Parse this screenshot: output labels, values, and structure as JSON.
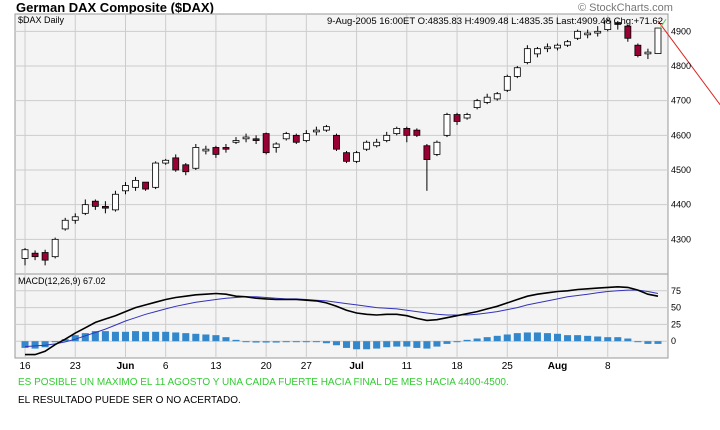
{
  "header": {
    "title": "German DAX Composite ($DAX)",
    "watermark": "© StockCharts.com"
  },
  "notes": {
    "line1": "ES  POSIBLE UN MAXIMO EL 11 AGOSTO Y UNA CAIDA FUERTE HACIA FINAL DE MES HACIA 4400-4500.",
    "line2": "EL RESULTADO PUEDE SER O NO ACERTADO."
  },
  "chart_data": [
    {
      "type": "candlestick",
      "symbol_label": "$DAX Daily",
      "info": "9-Aug-2005 16:00ET  O:4835.83  H:4909.48  L:4835.35  Last:4909.48  Chg:+71.62",
      "ylim": [
        4200,
        4950
      ],
      "yticks": [
        4300,
        4400,
        4500,
        4600,
        4700,
        4800,
        4900
      ],
      "grid": true,
      "colors": {
        "up": "#ffffff",
        "down": "#990033",
        "outline": "#000000",
        "projection": "#dd2222",
        "chg": "#33aa33"
      },
      "x_labels": [
        "16",
        "23",
        "Jun",
        "6",
        "13",
        "20",
        "27",
        "Jul",
        "11",
        "18",
        "25",
        "Aug",
        "8"
      ],
      "candles": [
        {
          "o": 4245,
          "h": 4275,
          "l": 4225,
          "c": 4270
        },
        {
          "o": 4260,
          "h": 4268,
          "l": 4240,
          "c": 4250
        },
        {
          "o": 4262,
          "h": 4270,
          "l": 4225,
          "c": 4240
        },
        {
          "o": 4250,
          "h": 4305,
          "l": 4245,
          "c": 4300
        },
        {
          "o": 4330,
          "h": 4362,
          "l": 4325,
          "c": 4355
        },
        {
          "o": 4355,
          "h": 4375,
          "l": 4345,
          "c": 4365
        },
        {
          "o": 4375,
          "h": 4415,
          "l": 4370,
          "c": 4400
        },
        {
          "o": 4410,
          "h": 4415,
          "l": 4385,
          "c": 4395
        },
        {
          "o": 4395,
          "h": 4410,
          "l": 4375,
          "c": 4390
        },
        {
          "o": 4385,
          "h": 4440,
          "l": 4380,
          "c": 4430
        },
        {
          "o": 4440,
          "h": 4465,
          "l": 4430,
          "c": 4455
        },
        {
          "o": 4450,
          "h": 4480,
          "l": 4440,
          "c": 4470
        },
        {
          "o": 4465,
          "h": 4462,
          "l": 4440,
          "c": 4445
        },
        {
          "o": 4450,
          "h": 4525,
          "l": 4445,
          "c": 4520
        },
        {
          "o": 4520,
          "h": 4532,
          "l": 4515,
          "c": 4528
        },
        {
          "o": 4535,
          "h": 4545,
          "l": 4495,
          "c": 4500
        },
        {
          "o": 4515,
          "h": 4520,
          "l": 4485,
          "c": 4495
        },
        {
          "o": 4505,
          "h": 4575,
          "l": 4500,
          "c": 4565
        },
        {
          "o": 4555,
          "h": 4570,
          "l": 4545,
          "c": 4560
        },
        {
          "o": 4565,
          "h": 4570,
          "l": 4535,
          "c": 4545
        },
        {
          "o": 4565,
          "h": 4575,
          "l": 4550,
          "c": 4560
        },
        {
          "o": 4580,
          "h": 4595,
          "l": 4575,
          "c": 4585
        },
        {
          "o": 4590,
          "h": 4605,
          "l": 4580,
          "c": 4595
        },
        {
          "o": 4590,
          "h": 4600,
          "l": 4575,
          "c": 4585
        },
        {
          "o": 4605,
          "h": 4608,
          "l": 4545,
          "c": 4550
        },
        {
          "o": 4565,
          "h": 4580,
          "l": 4550,
          "c": 4575
        },
        {
          "o": 4590,
          "h": 4610,
          "l": 4585,
          "c": 4605
        },
        {
          "o": 4600,
          "h": 4605,
          "l": 4575,
          "c": 4580
        },
        {
          "o": 4585,
          "h": 4615,
          "l": 4580,
          "c": 4605
        },
        {
          "o": 4610,
          "h": 4625,
          "l": 4600,
          "c": 4615
        },
        {
          "o": 4615,
          "h": 4630,
          "l": 4610,
          "c": 4625
        },
        {
          "o": 4600,
          "h": 4605,
          "l": 4555,
          "c": 4560
        },
        {
          "o": 4550,
          "h": 4555,
          "l": 4520,
          "c": 4525
        },
        {
          "o": 4525,
          "h": 4555,
          "l": 4520,
          "c": 4550
        },
        {
          "o": 4560,
          "h": 4585,
          "l": 4555,
          "c": 4580
        },
        {
          "o": 4570,
          "h": 4590,
          "l": 4565,
          "c": 4580
        },
        {
          "o": 4585,
          "h": 4610,
          "l": 4580,
          "c": 4600
        },
        {
          "o": 4605,
          "h": 4625,
          "l": 4600,
          "c": 4620
        },
        {
          "o": 4620,
          "h": 4625,
          "l": 4580,
          "c": 4600
        },
        {
          "o": 4615,
          "h": 4620,
          "l": 4595,
          "c": 4600
        },
        {
          "o": 4570,
          "h": 4575,
          "l": 4440,
          "c": 4530
        },
        {
          "o": 4545,
          "h": 4585,
          "l": 4540,
          "c": 4580
        },
        {
          "o": 4600,
          "h": 4665,
          "l": 4595,
          "c": 4660
        },
        {
          "o": 4660,
          "h": 4665,
          "l": 4630,
          "c": 4640
        },
        {
          "o": 4650,
          "h": 4665,
          "l": 4645,
          "c": 4660
        },
        {
          "o": 4680,
          "h": 4705,
          "l": 4675,
          "c": 4700
        },
        {
          "o": 4695,
          "h": 4720,
          "l": 4690,
          "c": 4710
        },
        {
          "o": 4705,
          "h": 4725,
          "l": 4700,
          "c": 4720
        },
        {
          "o": 4730,
          "h": 4775,
          "l": 4725,
          "c": 4770
        },
        {
          "o": 4770,
          "h": 4800,
          "l": 4765,
          "c": 4795
        },
        {
          "o": 4810,
          "h": 4860,
          "l": 4805,
          "c": 4850
        },
        {
          "o": 4835,
          "h": 4855,
          "l": 4825,
          "c": 4850
        },
        {
          "o": 4850,
          "h": 4865,
          "l": 4840,
          "c": 4855
        },
        {
          "o": 4852,
          "h": 4865,
          "l": 4845,
          "c": 4860
        },
        {
          "o": 4860,
          "h": 4875,
          "l": 4855,
          "c": 4870
        },
        {
          "o": 4880,
          "h": 4905,
          "l": 4875,
          "c": 4900
        },
        {
          "o": 4890,
          "h": 4905,
          "l": 4880,
          "c": 4895
        },
        {
          "o": 4895,
          "h": 4915,
          "l": 4885,
          "c": 4900
        },
        {
          "o": 4905,
          "h": 4935,
          "l": 4900,
          "c": 4930
        },
        {
          "o": 4925,
          "h": 4930,
          "l": 4905,
          "c": 4920
        },
        {
          "o": 4915,
          "h": 4920,
          "l": 4870,
          "c": 4880
        },
        {
          "o": 4860,
          "h": 4865,
          "l": 4825,
          "c": 4830
        },
        {
          "o": 4835,
          "h": 4850,
          "l": 4820,
          "c": 4840
        },
        {
          "o": 4835.83,
          "h": 4909.48,
          "l": 4835.35,
          "c": 4909.48
        }
      ],
      "projection": {
        "from": [
          63,
          4930
        ],
        "to": [
          74,
          4500
        ]
      }
    },
    {
      "type": "line+bar",
      "label": "MACD(12,26,9) 67.02",
      "ylim": [
        -25,
        100
      ],
      "yticks": [
        0,
        25,
        50,
        75
      ],
      "macd": [
        -20,
        -20,
        -15,
        -5,
        3,
        12,
        20,
        28,
        33,
        38,
        44,
        50,
        54,
        58,
        62,
        65,
        67,
        69,
        70,
        71,
        70,
        67,
        66,
        64,
        63,
        62,
        62,
        62,
        61,
        60,
        57,
        52,
        46,
        42,
        40,
        39,
        40,
        40,
        38,
        34,
        31,
        32,
        35,
        38,
        41,
        44,
        48,
        52,
        57,
        62,
        67,
        70,
        72,
        74,
        75,
        77,
        78,
        79,
        80,
        81,
        80,
        76,
        70,
        67.02
      ],
      "signal": [
        -8,
        -7,
        -6,
        -4,
        -1,
        3,
        8,
        13,
        18,
        24,
        30,
        35,
        40,
        44,
        48,
        52,
        55,
        58,
        60,
        62,
        64,
        65,
        66,
        66,
        65,
        64,
        63,
        63,
        62,
        61,
        60,
        58,
        56,
        54,
        52,
        50,
        49,
        48,
        46,
        44,
        42,
        40,
        39,
        39,
        39,
        40,
        42,
        44,
        47,
        50,
        54,
        57,
        60,
        63,
        66,
        68,
        70,
        72,
        74,
        75,
        76,
        76,
        74,
        71
      ],
      "histogram": [
        -10,
        -11,
        -9,
        -1,
        3,
        9,
        12,
        15,
        15,
        14,
        14,
        15,
        14,
        14,
        14,
        13,
        12,
        11,
        10,
        9,
        6,
        2,
        0,
        -2,
        -2,
        -2,
        -1,
        -1,
        -1,
        -1,
        -3,
        -6,
        -10,
        -12,
        -12,
        -11,
        -9,
        -8,
        -8,
        -10,
        -11,
        -8,
        -4,
        -1,
        2,
        4,
        6,
        8,
        10,
        12,
        13,
        13,
        12,
        11,
        9,
        9,
        8,
        7,
        6,
        6,
        4,
        0,
        -4,
        -4
      ],
      "colors": {
        "macd": "#000000",
        "signal": "#3333bb",
        "histogram": "#3388cc"
      }
    }
  ]
}
